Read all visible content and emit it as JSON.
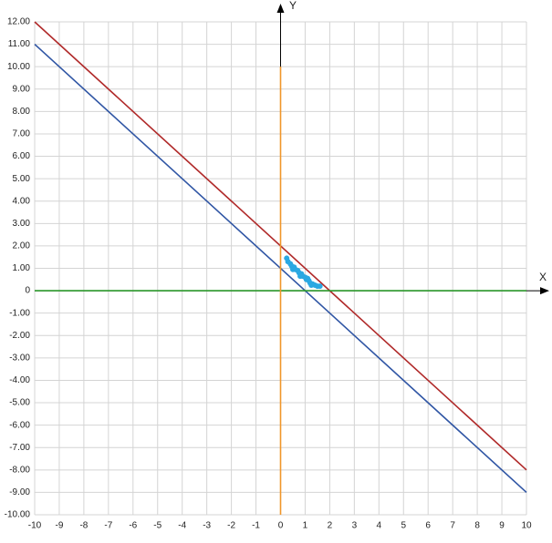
{
  "chart_data": {
    "type": "line",
    "x_label": "X",
    "y_label": "Y",
    "xlim": [
      -10,
      10
    ],
    "ylim": [
      -10,
      12
    ],
    "xticks": [
      -10,
      -9,
      -8,
      -7,
      -6,
      -5,
      -4,
      -3,
      -2,
      -1,
      0,
      1,
      2,
      3,
      4,
      5,
      6,
      7,
      8,
      9,
      10
    ],
    "yticks": [
      {
        "value": 12,
        "label": "12.00"
      },
      {
        "value": 11,
        "label": "11.00"
      },
      {
        "value": 10,
        "label": "10.00"
      },
      {
        "value": 9,
        "label": "9.00"
      },
      {
        "value": 8,
        "label": "8.00"
      },
      {
        "value": 7,
        "label": "7.00"
      },
      {
        "value": 6,
        "label": "6.00"
      },
      {
        "value": 5,
        "label": "5.00"
      },
      {
        "value": 4,
        "label": "4.00"
      },
      {
        "value": 3,
        "label": "3.00"
      },
      {
        "value": 2,
        "label": "2.00"
      },
      {
        "value": 1,
        "label": "1.00"
      },
      0,
      {
        "value": -1,
        "label": "-1.00"
      },
      {
        "value": -2,
        "label": "-2.00"
      },
      {
        "value": -3,
        "label": "-3.00"
      },
      {
        "value": -4,
        "label": "-4.00"
      },
      {
        "value": -5,
        "label": "-5.00"
      },
      {
        "value": -6,
        "label": "-6.00"
      },
      {
        "value": -7,
        "label": "-7.00"
      },
      {
        "value": -8,
        "label": "-8.00"
      },
      {
        "value": -9,
        "label": "-9.00"
      },
      {
        "value": -10,
        "label": "-10.00"
      }
    ],
    "grid": true,
    "series": [
      {
        "type": "line",
        "color": "#b02a2a",
        "x": [
          -10,
          10
        ],
        "values": [
          12,
          -8
        ]
      },
      {
        "type": "line",
        "color": "#2f55a4",
        "x": [
          -10,
          10
        ],
        "values": [
          11,
          -9
        ]
      },
      {
        "type": "line",
        "color": "#2e9b2e",
        "x": [
          -10,
          10
        ],
        "values": [
          0,
          0
        ]
      },
      {
        "type": "line",
        "color": "#f0962a",
        "x": [
          0,
          0
        ],
        "values": [
          10,
          -10
        ]
      },
      {
        "type": "scatter",
        "color": "#2aa8e2",
        "x": [
          0.25,
          0.3,
          0.4,
          0.45,
          0.5,
          0.55,
          0.6,
          0.7,
          0.75,
          0.8,
          0.85,
          0.9,
          1.0,
          1.05,
          1.1,
          1.15,
          1.2,
          1.25,
          1.3,
          1.4,
          1.5,
          1.6
        ],
        "values": [
          1.45,
          1.3,
          1.2,
          1.1,
          0.95,
          1.05,
          0.95,
          0.9,
          0.8,
          0.65,
          0.75,
          0.65,
          0.6,
          0.5,
          0.55,
          0.45,
          0.35,
          0.25,
          0.3,
          0.25,
          0.2,
          0.2
        ]
      }
    ]
  }
}
